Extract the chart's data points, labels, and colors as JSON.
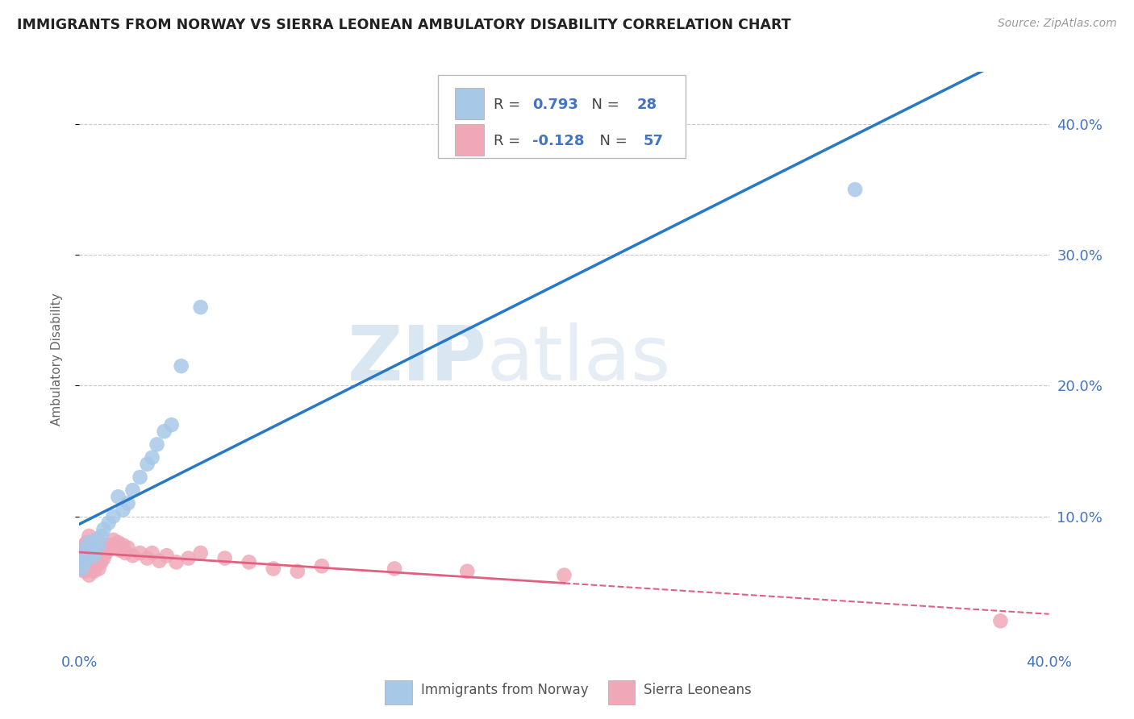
{
  "title": "IMMIGRANTS FROM NORWAY VS SIERRA LEONEAN AMBULATORY DISABILITY CORRELATION CHART",
  "source": "Source: ZipAtlas.com",
  "ylabel": "Ambulatory Disability",
  "xlim": [
    0.0,
    0.4
  ],
  "ylim": [
    0.0,
    0.44
  ],
  "blue_color": "#a8c8e8",
  "pink_color": "#f0a8b8",
  "blue_line_color": "#2878c8",
  "pink_line_color": "#e06080",
  "grid_color": "#c8c8c8",
  "background_color": "#ffffff",
  "norway_points_x": [
    0.001,
    0.001,
    0.002,
    0.002,
    0.003,
    0.003,
    0.004,
    0.005,
    0.006,
    0.007,
    0.008,
    0.009,
    0.01,
    0.012,
    0.014,
    0.016,
    0.018,
    0.02,
    0.022,
    0.025,
    0.028,
    0.03,
    0.032,
    0.035,
    0.038,
    0.042,
    0.05,
    0.32
  ],
  "norway_points_y": [
    0.06,
    0.07,
    0.065,
    0.075,
    0.068,
    0.072,
    0.08,
    0.075,
    0.07,
    0.082,
    0.078,
    0.085,
    0.09,
    0.095,
    0.1,
    0.115,
    0.105,
    0.11,
    0.12,
    0.13,
    0.14,
    0.145,
    0.155,
    0.165,
    0.17,
    0.215,
    0.26,
    0.35
  ],
  "sierra_points_x": [
    0.001,
    0.001,
    0.001,
    0.002,
    0.002,
    0.002,
    0.003,
    0.003,
    0.003,
    0.004,
    0.004,
    0.004,
    0.004,
    0.005,
    0.005,
    0.005,
    0.006,
    0.006,
    0.006,
    0.007,
    0.007,
    0.007,
    0.008,
    0.008,
    0.008,
    0.009,
    0.009,
    0.01,
    0.01,
    0.011,
    0.012,
    0.013,
    0.014,
    0.015,
    0.016,
    0.017,
    0.018,
    0.019,
    0.02,
    0.022,
    0.025,
    0.028,
    0.03,
    0.033,
    0.036,
    0.04,
    0.045,
    0.05,
    0.06,
    0.07,
    0.08,
    0.09,
    0.1,
    0.13,
    0.16,
    0.2,
    0.38
  ],
  "sierra_points_y": [
    0.06,
    0.065,
    0.075,
    0.058,
    0.068,
    0.078,
    0.062,
    0.07,
    0.08,
    0.055,
    0.065,
    0.075,
    0.085,
    0.06,
    0.07,
    0.08,
    0.058,
    0.068,
    0.078,
    0.062,
    0.072,
    0.082,
    0.06,
    0.07,
    0.08,
    0.065,
    0.075,
    0.068,
    0.078,
    0.072,
    0.075,
    0.078,
    0.082,
    0.076,
    0.08,
    0.074,
    0.078,
    0.072,
    0.076,
    0.07,
    0.072,
    0.068,
    0.072,
    0.066,
    0.07,
    0.065,
    0.068,
    0.072,
    0.068,
    0.065,
    0.06,
    0.058,
    0.062,
    0.06,
    0.058,
    0.055,
    0.02
  ],
  "r_norway": "0.793",
  "n_norway": "28",
  "r_sierra": "-0.128",
  "n_sierra": "57"
}
